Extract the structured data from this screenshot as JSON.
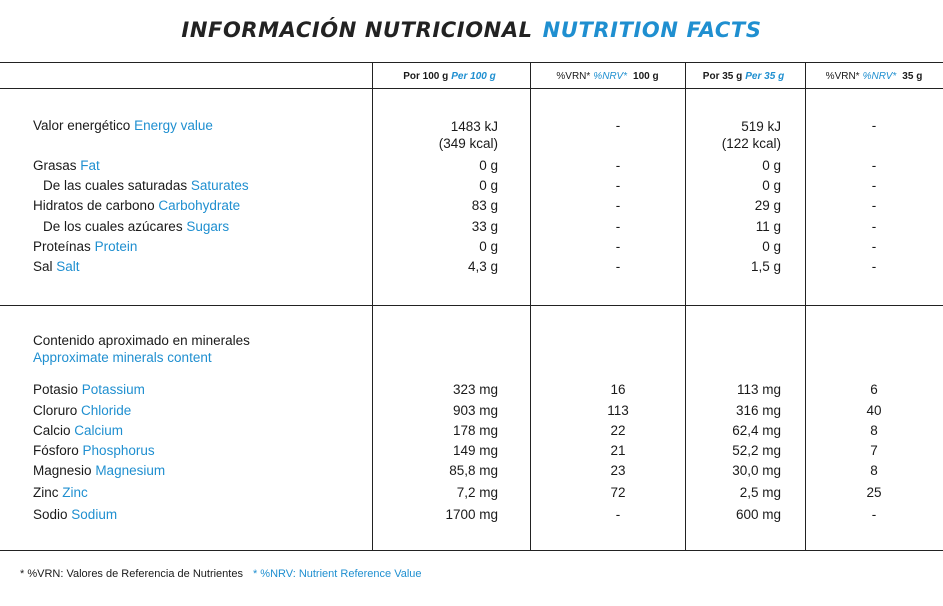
{
  "title": {
    "es": "INFORMACIÓN NUTRICIONAL",
    "en": "NUTRITION FACTS"
  },
  "header": {
    "col1": {
      "es": "Por 100 g",
      "en": "Per 100 g"
    },
    "col2": {
      "es": "%VRN*",
      "en": "%NRV*",
      "amount": "100 g"
    },
    "col3": {
      "es": "Por 35 g",
      "en": "Per 35 g"
    },
    "col4": {
      "es": "%VRN*",
      "en": "%NRV*",
      "amount": "35 g"
    }
  },
  "energy": {
    "es": "Valor energético",
    "en": "Energy value",
    "per100_kj": "1483 kJ",
    "per100_kcal": "(349 kcal)",
    "vrn100": "-",
    "per35_kj": "519 kJ",
    "per35_kcal": "(122 kcal)",
    "vrn35": "-"
  },
  "nutrients": [
    {
      "es": "Grasas",
      "en": "Fat",
      "indent": false,
      "per100": "0 g",
      "vrn100": "-",
      "per35": "0 g",
      "vrn35": "-"
    },
    {
      "es": "De las cuales saturadas",
      "en": "Saturates",
      "indent": true,
      "per100": "0 g",
      "vrn100": "-",
      "per35": "0 g",
      "vrn35": "-"
    },
    {
      "es": "Hidratos de carbono",
      "en": "Carbohydrate",
      "indent": false,
      "per100": "83 g",
      "vrn100": "-",
      "per35": "29 g",
      "vrn35": "-"
    },
    {
      "es": "De los cuales azúcares",
      "en": "Sugars",
      "indent": true,
      "per100": "33 g",
      "vrn100": "-",
      "per35": "11 g",
      "vrn35": "-"
    },
    {
      "es": "Proteínas",
      "en": "Protein",
      "indent": false,
      "per100": "0 g",
      "vrn100": "-",
      "per35": "0 g",
      "vrn35": "-"
    },
    {
      "es": "Sal",
      "en": "Salt",
      "indent": false,
      "per100": "4,3 g",
      "vrn100": "-",
      "per35": "1,5 g",
      "vrn35": "-"
    }
  ],
  "minerals_heading": {
    "es": "Contenido aproximado en minerales",
    "en": "Approximate minerals content"
  },
  "minerals": [
    {
      "es": "Potasio",
      "en": "Potassium",
      "per100": "323 mg",
      "vrn100": "16",
      "per35": "113 mg",
      "vrn35": "6"
    },
    {
      "es": "Cloruro",
      "en": "Chloride",
      "per100": "903 mg",
      "vrn100": "113",
      "per35": "316 mg",
      "vrn35": "40"
    },
    {
      "es": "Calcio",
      "en": "Calcium",
      "per100": "178 mg",
      "vrn100": "22",
      "per35": "62,4 mg",
      "vrn35": "8"
    },
    {
      "es": "Fósforo",
      "en": "Phosphorus",
      "per100": "149 mg",
      "vrn100": "21",
      "per35": "52,2 mg",
      "vrn35": "7"
    },
    {
      "es": "Magnesio",
      "en": "Magnesium",
      "per100": "85,8 mg",
      "vrn100": "23",
      "per35": "30,0 mg",
      "vrn35": "8"
    },
    {
      "es": "Zinc",
      "en": "Zinc",
      "per100": "7,2 mg",
      "vrn100": "72",
      "per35": "2,5 mg",
      "vrn35": "25"
    },
    {
      "es": "Sodio",
      "en": "Sodium",
      "per100": "1700 mg",
      "vrn100": "-",
      "per35": "600 mg",
      "vrn35": "-"
    }
  ],
  "footnote": {
    "es": "* %VRN: Valores de Referencia de Nutrientes",
    "en": "* %NRV: Nutrient Reference Value"
  },
  "colors": {
    "accent": "#1f8fd0",
    "text": "#1a1a1a",
    "rule": "#222222"
  }
}
